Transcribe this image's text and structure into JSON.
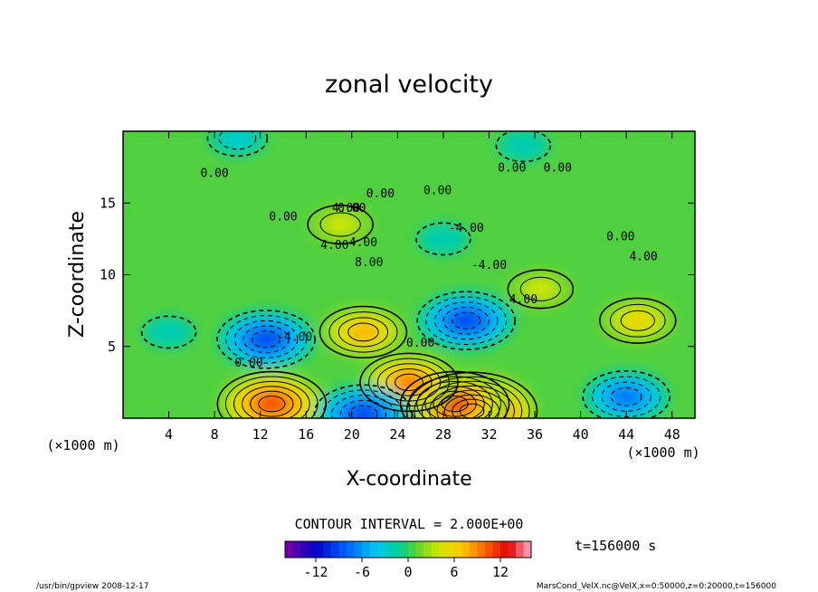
{
  "chart_data": {
    "type": "heatmap",
    "title": "zonal velocity",
    "xlabel": "X-coordinate",
    "ylabel": "Z-coordinate",
    "x_unit": "(×1000 m)",
    "y_unit": "(×1000 m)",
    "xlim": [
      0,
      50
    ],
    "ylim": [
      0,
      20
    ],
    "x_ticks": [
      4,
      8,
      12,
      16,
      20,
      24,
      28,
      32,
      36,
      40,
      44,
      48
    ],
    "y_ticks": [
      5,
      10,
      15
    ],
    "contour_interval_text": "CONTOUR INTERVAL = 2.000E+00",
    "colorbar": {
      "min": -16,
      "max": 16,
      "ticks": [
        -12,
        -6,
        0,
        6,
        12
      ]
    },
    "contour_labels": [
      "0.00",
      "0.00",
      "0.00",
      "0.00",
      "0.00",
      "0.00",
      "0.00",
      "0.00",
      "0.00",
      "0.00",
      "4.00",
      "4.00",
      "4.00",
      "8.00",
      "4.00",
      "4.00",
      "-4.00",
      "-4.00",
      "-4.00"
    ],
    "features": [
      {
        "x": 30.5,
        "z": 0.5,
        "value": 16
      },
      {
        "x": 29.0,
        "z": 1.0,
        "value": 12
      },
      {
        "x": 25.0,
        "z": 2.5,
        "value": 10
      },
      {
        "x": 21.0,
        "z": 6.0,
        "value": 8
      },
      {
        "x": 13.0,
        "z": 1.0,
        "value": 12
      },
      {
        "x": 45.0,
        "z": 6.8,
        "value": 6
      },
      {
        "x": 36.5,
        "z": 9.0,
        "value": 4
      },
      {
        "x": 19.0,
        "z": 13.5,
        "value": 4
      },
      {
        "x": 12.5,
        "z": 5.5,
        "value": -10
      },
      {
        "x": 30.0,
        "z": 6.8,
        "value": -10
      },
      {
        "x": 21.0,
        "z": 0.3,
        "value": -10
      },
      {
        "x": 44.0,
        "z": 1.5,
        "value": -8
      },
      {
        "x": 4.0,
        "z": 6.0,
        "value": -2
      },
      {
        "x": 28.0,
        "z": 12.5,
        "value": -2
      },
      {
        "x": 10.0,
        "z": 19.5,
        "value": -3
      },
      {
        "x": 35.0,
        "z": 19.0,
        "value": -2
      }
    ]
  },
  "time_label": "t=156000 s",
  "footer": {
    "left": "/usr/bin/gpview   2008-12-17",
    "right": "MarsCond_VelX.nc@VelX,x=0:50000,z=0:20000,t=156000"
  }
}
